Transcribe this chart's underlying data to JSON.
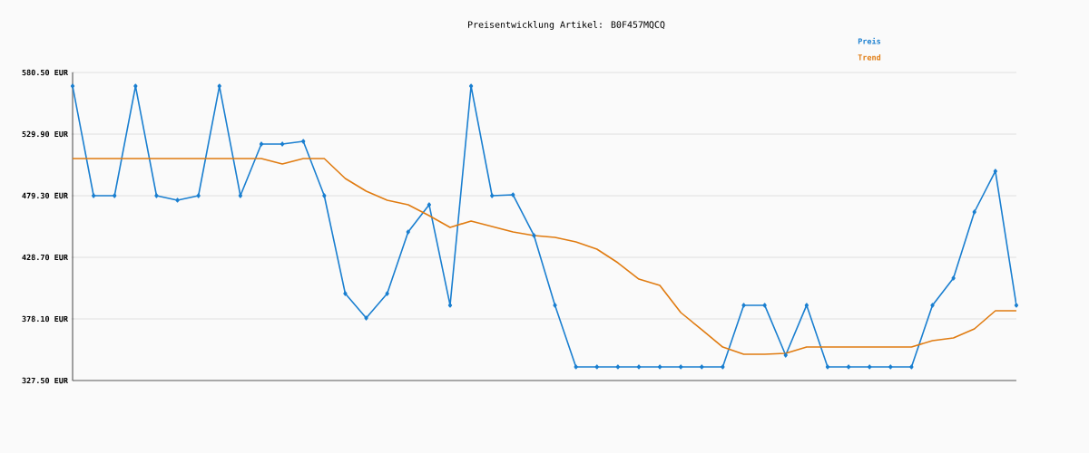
{
  "chart_data": {
    "type": "line",
    "title": "Preisentwicklung Artikel: B0F457MQCQ",
    "categories": [
      null,
      null,
      null,
      null,
      null,
      null,
      null,
      null,
      null,
      null,
      null,
      null,
      null,
      null,
      null,
      null,
      null,
      null,
      null,
      null,
      null,
      null,
      null,
      null,
      null,
      null,
      null,
      null,
      null,
      null,
      null,
      null,
      null,
      null,
      null,
      null,
      null,
      null,
      null,
      null,
      null,
      null,
      null,
      null,
      null,
      null
    ],
    "ylim": [
      327.5,
      580.5
    ],
    "yticks": [
      {
        "value": 327.5,
        "label": "327.50 EUR"
      },
      {
        "value": 378.1,
        "label": "378.10 EUR"
      },
      {
        "value": 428.7,
        "label": "428.70 EUR"
      },
      {
        "value": 479.3,
        "label": "479.30 EUR"
      },
      {
        "value": 529.9,
        "label": "529.90 EUR"
      },
      {
        "value": 580.5,
        "label": "580.50 EUR"
      }
    ],
    "grid": "y",
    "legend": "top right",
    "tick_labels": "y",
    "series": [
      {
        "name": "Preis",
        "color": "#1a7fd0",
        "marker": "diamond",
        "values": [
          569.3,
          479.3,
          479.3,
          569.3,
          479.3,
          475.6,
          479.3,
          569.3,
          479.3,
          521.7,
          521.7,
          523.9,
          479.3,
          398.9,
          378.8,
          398.9,
          449.5,
          471.9,
          389.3,
          569.3,
          479.3,
          480.0,
          446.6,
          389.3,
          338.7,
          338.7,
          338.7,
          338.7,
          338.7,
          338.7,
          338.7,
          338.7,
          389.3,
          389.3,
          348.3,
          389.3,
          338.7,
          338.7,
          338.7,
          338.7,
          338.7,
          389.3,
          411.6,
          465.9,
          499.4,
          389.3
        ]
      },
      {
        "name": "Trend",
        "color": "#e07b10",
        "marker": "none",
        "values": [
          509.8,
          509.8,
          509.8,
          509.8,
          509.8,
          509.8,
          509.8,
          509.8,
          509.8,
          509.8,
          505.3,
          509.8,
          509.8,
          493.4,
          483.0,
          475.6,
          471.9,
          462.9,
          453.3,
          458.5,
          454.0,
          449.5,
          446.6,
          445.1,
          441.3,
          435.4,
          424.2,
          410.8,
          405.6,
          383.3,
          369.2,
          355.0,
          349.1,
          349.1,
          349.8,
          355.0,
          355.0,
          355.0,
          355.0,
          355.0,
          355.0,
          360.2,
          362.5,
          369.9,
          384.8,
          384.8
        ]
      }
    ]
  }
}
